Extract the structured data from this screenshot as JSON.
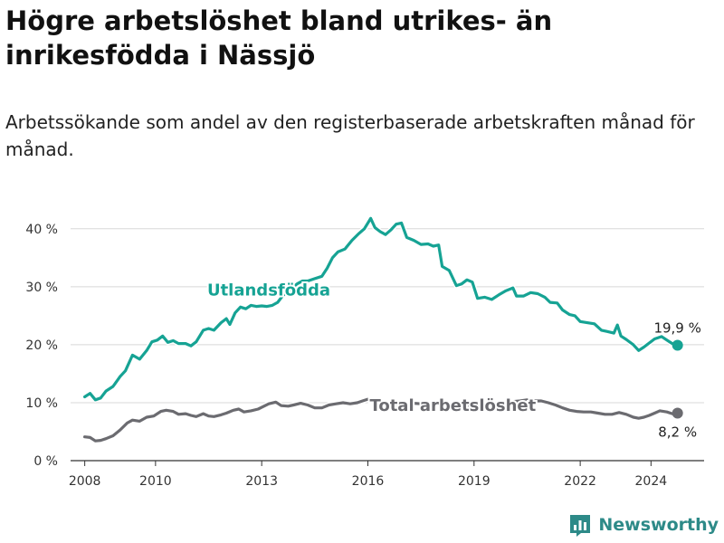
{
  "header": {
    "title": "Högre arbetslöshet bland utrikes- än inrikesfödda i Nässjö",
    "subtitle": "Arbetssökande som andel av den registerbaserade arbetskraften månad för månad."
  },
  "brand": {
    "name": "Newsworthy",
    "icon": "bar-chart-logo-icon"
  },
  "colors": {
    "utlandsfodda": "#16a394",
    "total": "#6b6b70",
    "grid": "#d8d8d8",
    "axis": "#333333"
  },
  "chart_data": {
    "type": "line",
    "title": "Högre arbetslöshet bland utrikes- än inrikesfödda i Nässjö",
    "xlabel": "",
    "ylabel": "",
    "xlim": [
      2007.6,
      2025.5
    ],
    "ylim": [
      0,
      42
    ],
    "yticks": [
      0,
      10,
      20,
      30,
      40
    ],
    "ytick_labels": [
      "0 %",
      "10 %",
      "20 %",
      "30 %",
      "40 %"
    ],
    "xticks": [
      2008,
      2010,
      2013,
      2016,
      2019,
      2022,
      2024
    ],
    "xtick_labels": [
      "2008",
      "2010",
      "2013",
      "2016",
      "2019",
      "2022",
      "2024"
    ],
    "grid": true,
    "series": [
      {
        "name": "Utlandsfödda",
        "label": "Utlandsfödda",
        "color": "#16a394",
        "end_label": "19,9 %",
        "points": [
          [
            2008.0,
            11.0
          ],
          [
            2008.15,
            11.6
          ],
          [
            2008.3,
            10.5
          ],
          [
            2008.45,
            10.8
          ],
          [
            2008.6,
            12.0
          ],
          [
            2008.8,
            12.8
          ],
          [
            2009.0,
            14.5
          ],
          [
            2009.15,
            15.5
          ],
          [
            2009.35,
            18.2
          ],
          [
            2009.55,
            17.5
          ],
          [
            2009.75,
            19.0
          ],
          [
            2009.9,
            20.5
          ],
          [
            2010.05,
            20.8
          ],
          [
            2010.2,
            21.5
          ],
          [
            2010.35,
            20.4
          ],
          [
            2010.5,
            20.7
          ],
          [
            2010.65,
            20.2
          ],
          [
            2010.85,
            20.2
          ],
          [
            2011.0,
            19.8
          ],
          [
            2011.15,
            20.5
          ],
          [
            2011.35,
            22.5
          ],
          [
            2011.5,
            22.8
          ],
          [
            2011.65,
            22.5
          ],
          [
            2011.85,
            23.8
          ],
          [
            2012.0,
            24.5
          ],
          [
            2012.1,
            23.5
          ],
          [
            2012.25,
            25.5
          ],
          [
            2012.4,
            26.5
          ],
          [
            2012.55,
            26.2
          ],
          [
            2012.7,
            26.8
          ],
          [
            2012.85,
            26.6
          ],
          [
            2013.0,
            26.7
          ],
          [
            2013.15,
            26.6
          ],
          [
            2013.3,
            26.8
          ],
          [
            2013.45,
            27.3
          ],
          [
            2013.6,
            28.5
          ],
          [
            2013.8,
            29.5
          ],
          [
            2014.0,
            30.5
          ],
          [
            2014.15,
            31.0
          ],
          [
            2014.3,
            31.0
          ],
          [
            2014.5,
            31.4
          ],
          [
            2014.7,
            31.8
          ],
          [
            2014.85,
            33.2
          ],
          [
            2015.0,
            35.0
          ],
          [
            2015.15,
            36.0
          ],
          [
            2015.35,
            36.5
          ],
          [
            2015.55,
            38.0
          ],
          [
            2015.75,
            39.2
          ],
          [
            2015.9,
            40.0
          ],
          [
            2016.0,
            41.0
          ],
          [
            2016.08,
            41.8
          ],
          [
            2016.2,
            40.2
          ],
          [
            2016.35,
            39.5
          ],
          [
            2016.5,
            39.0
          ],
          [
            2016.65,
            39.8
          ],
          [
            2016.8,
            40.8
          ],
          [
            2016.95,
            41.0
          ],
          [
            2017.1,
            38.5
          ],
          [
            2017.3,
            38.0
          ],
          [
            2017.5,
            37.3
          ],
          [
            2017.7,
            37.4
          ],
          [
            2017.85,
            37.0
          ],
          [
            2018.0,
            37.2
          ],
          [
            2018.1,
            33.5
          ],
          [
            2018.3,
            32.8
          ],
          [
            2018.5,
            30.2
          ],
          [
            2018.65,
            30.5
          ],
          [
            2018.8,
            31.2
          ],
          [
            2018.95,
            30.8
          ],
          [
            2019.1,
            28.0
          ],
          [
            2019.3,
            28.2
          ],
          [
            2019.5,
            27.8
          ],
          [
            2019.7,
            28.6
          ],
          [
            2019.9,
            29.3
          ],
          [
            2020.1,
            29.8
          ],
          [
            2020.2,
            28.4
          ],
          [
            2020.4,
            28.4
          ],
          [
            2020.6,
            29.0
          ],
          [
            2020.8,
            28.8
          ],
          [
            2021.0,
            28.2
          ],
          [
            2021.15,
            27.3
          ],
          [
            2021.35,
            27.2
          ],
          [
            2021.5,
            26.0
          ],
          [
            2021.7,
            25.2
          ],
          [
            2021.85,
            25.0
          ],
          [
            2022.0,
            24.0
          ],
          [
            2022.2,
            23.8
          ],
          [
            2022.4,
            23.6
          ],
          [
            2022.6,
            22.5
          ],
          [
            2022.75,
            22.3
          ],
          [
            2022.95,
            22.0
          ],
          [
            2023.05,
            23.4
          ],
          [
            2023.15,
            21.5
          ],
          [
            2023.3,
            20.9
          ],
          [
            2023.5,
            20.0
          ],
          [
            2023.65,
            19.0
          ],
          [
            2023.8,
            19.6
          ],
          [
            2023.95,
            20.3
          ],
          [
            2024.1,
            21.0
          ],
          [
            2024.3,
            21.4
          ],
          [
            2024.45,
            20.8
          ],
          [
            2024.6,
            20.2
          ],
          [
            2024.75,
            19.9
          ]
        ]
      },
      {
        "name": "Total arbetslöshet",
        "label": "Total arbetslöshet",
        "color": "#6b6b70",
        "end_label": "8,2 %",
        "points": [
          [
            2008.0,
            4.1
          ],
          [
            2008.15,
            4.0
          ],
          [
            2008.3,
            3.4
          ],
          [
            2008.45,
            3.5
          ],
          [
            2008.6,
            3.8
          ],
          [
            2008.8,
            4.3
          ],
          [
            2009.0,
            5.3
          ],
          [
            2009.2,
            6.5
          ],
          [
            2009.35,
            7.0
          ],
          [
            2009.55,
            6.8
          ],
          [
            2009.75,
            7.5
          ],
          [
            2009.95,
            7.7
          ],
          [
            2010.15,
            8.5
          ],
          [
            2010.3,
            8.7
          ],
          [
            2010.5,
            8.5
          ],
          [
            2010.65,
            8.0
          ],
          [
            2010.85,
            8.1
          ],
          [
            2011.0,
            7.8
          ],
          [
            2011.15,
            7.6
          ],
          [
            2011.35,
            8.1
          ],
          [
            2011.5,
            7.7
          ],
          [
            2011.65,
            7.6
          ],
          [
            2011.85,
            7.9
          ],
          [
            2012.0,
            8.2
          ],
          [
            2012.2,
            8.7
          ],
          [
            2012.35,
            8.9
          ],
          [
            2012.5,
            8.4
          ],
          [
            2012.7,
            8.6
          ],
          [
            2012.9,
            8.9
          ],
          [
            2013.0,
            9.2
          ],
          [
            2013.2,
            9.8
          ],
          [
            2013.4,
            10.1
          ],
          [
            2013.55,
            9.5
          ],
          [
            2013.75,
            9.4
          ],
          [
            2013.9,
            9.6
          ],
          [
            2014.1,
            9.9
          ],
          [
            2014.3,
            9.6
          ],
          [
            2014.5,
            9.1
          ],
          [
            2014.7,
            9.1
          ],
          [
            2014.9,
            9.6
          ],
          [
            2015.1,
            9.8
          ],
          [
            2015.3,
            10.0
          ],
          [
            2015.5,
            9.8
          ],
          [
            2015.7,
            10.0
          ],
          [
            2015.85,
            10.3
          ],
          [
            2016.0,
            10.6
          ],
          [
            2016.15,
            10.5
          ],
          [
            2016.35,
            10.1
          ],
          [
            2016.5,
            10.0
          ],
          [
            2016.7,
            9.6
          ],
          [
            2016.9,
            9.8
          ],
          [
            2017.1,
            9.8
          ],
          [
            2017.3,
            9.9
          ],
          [
            2017.5,
            9.8
          ],
          [
            2017.7,
            9.8
          ],
          [
            2017.9,
            9.9
          ],
          [
            2018.1,
            9.8
          ],
          [
            2018.3,
            9.6
          ],
          [
            2018.5,
            9.5
          ],
          [
            2018.7,
            9.5
          ],
          [
            2018.9,
            9.6
          ],
          [
            2019.1,
            9.6
          ],
          [
            2019.3,
            9.7
          ],
          [
            2019.5,
            9.8
          ],
          [
            2019.7,
            9.9
          ],
          [
            2019.9,
            10.0
          ],
          [
            2020.1,
            10.2
          ],
          [
            2020.3,
            10.3
          ],
          [
            2020.5,
            10.5
          ],
          [
            2020.7,
            10.3
          ],
          [
            2020.9,
            10.3
          ],
          [
            2021.1,
            10.0
          ],
          [
            2021.3,
            9.6
          ],
          [
            2021.5,
            9.1
          ],
          [
            2021.7,
            8.7
          ],
          [
            2021.9,
            8.5
          ],
          [
            2022.1,
            8.4
          ],
          [
            2022.3,
            8.4
          ],
          [
            2022.5,
            8.2
          ],
          [
            2022.7,
            8.0
          ],
          [
            2022.9,
            8.0
          ],
          [
            2023.1,
            8.3
          ],
          [
            2023.3,
            8.0
          ],
          [
            2023.5,
            7.5
          ],
          [
            2023.65,
            7.3
          ],
          [
            2023.8,
            7.5
          ],
          [
            2023.95,
            7.8
          ],
          [
            2024.1,
            8.2
          ],
          [
            2024.25,
            8.6
          ],
          [
            2024.45,
            8.4
          ],
          [
            2024.6,
            8.1
          ],
          [
            2024.75,
            8.2
          ]
        ]
      }
    ]
  }
}
